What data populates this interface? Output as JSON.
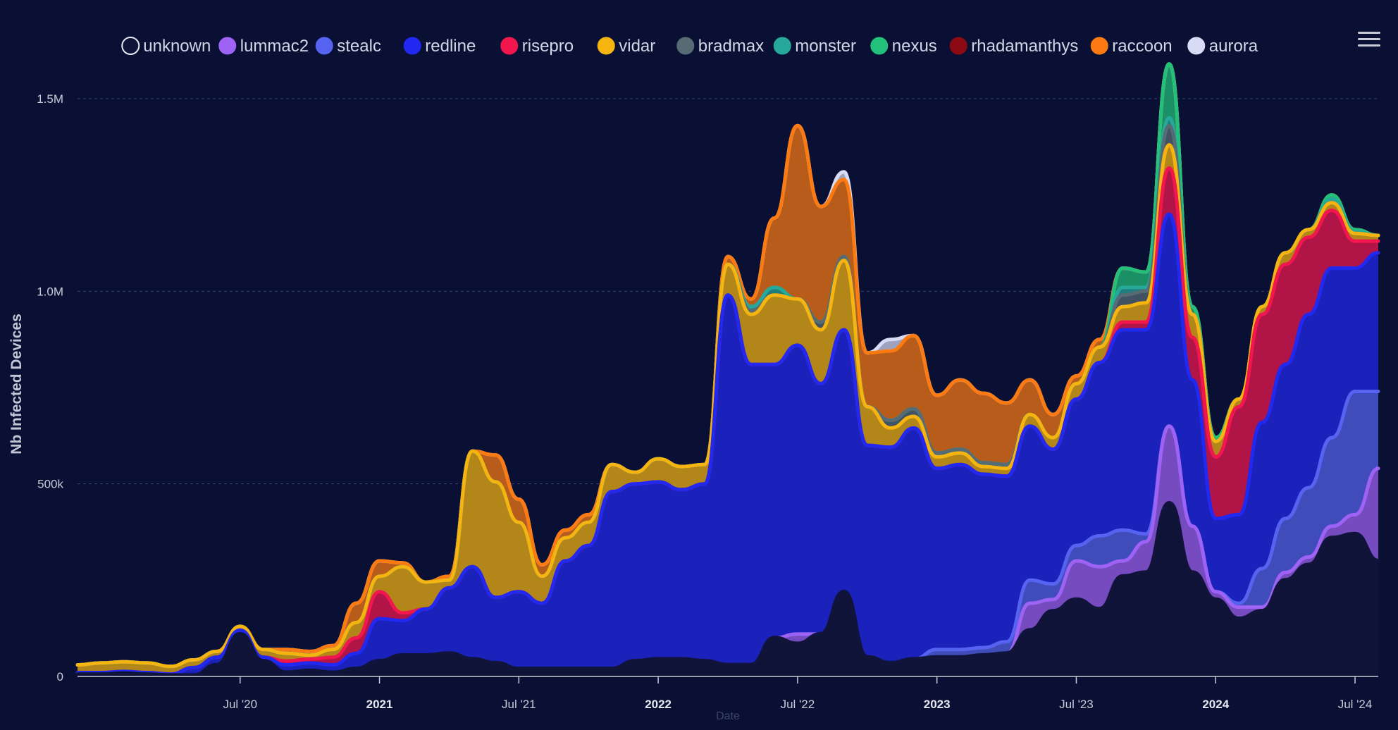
{
  "chart_data": {
    "type": "area",
    "stacked": true,
    "ylabel": "Nb Infected Devices",
    "xlabel": "Date",
    "ylim": [
      0,
      1500000
    ],
    "y_ticks": [
      0,
      500000,
      1000000,
      1500000
    ],
    "y_tick_labels": [
      "0",
      "500k",
      "1.0M",
      "1.5M"
    ],
    "x_range": [
      "2019-12",
      "2024-08"
    ],
    "x_ticks": [
      {
        "date": "2020-07",
        "label": "Jul '20",
        "major": false
      },
      {
        "date": "2021-01",
        "label": "2021",
        "major": true
      },
      {
        "date": "2021-07",
        "label": "Jul '21",
        "major": false
      },
      {
        "date": "2022-01",
        "label": "2022",
        "major": true
      },
      {
        "date": "2022-07",
        "label": "Jul '22",
        "major": false
      },
      {
        "date": "2023-01",
        "label": "2023",
        "major": true
      },
      {
        "date": "2023-07",
        "label": "Jul '23",
        "major": false
      },
      {
        "date": "2024-01",
        "label": "2024",
        "major": true
      },
      {
        "date": "2024-07",
        "label": "Jul '24",
        "major": false
      }
    ],
    "grid": "horizontal-dashed",
    "legend_position": "top",
    "x": [
      "2019-12",
      "2020-01",
      "2020-02",
      "2020-03",
      "2020-04",
      "2020-05",
      "2020-06",
      "2020-07",
      "2020-08",
      "2020-09",
      "2020-10",
      "2020-11",
      "2020-12",
      "2021-01",
      "2021-02",
      "2021-03",
      "2021-04",
      "2021-05",
      "2021-06",
      "2021-07",
      "2021-08",
      "2021-09",
      "2021-10",
      "2021-11",
      "2021-12",
      "2022-01",
      "2022-02",
      "2022-03",
      "2022-04",
      "2022-05",
      "2022-06",
      "2022-07",
      "2022-08",
      "2022-09",
      "2022-10",
      "2022-11",
      "2022-12",
      "2023-01",
      "2023-02",
      "2023-03",
      "2023-04",
      "2023-05",
      "2023-06",
      "2023-07",
      "2023-08",
      "2023-09",
      "2023-10",
      "2023-11",
      "2023-12",
      "2024-01",
      "2024-02",
      "2024-03",
      "2024-04",
      "2024-05",
      "2024-06",
      "2024-07",
      "2024-08"
    ],
    "series": [
      {
        "name": "unknown",
        "color": "#11143a",
        "values": [
          5000,
          5000,
          8000,
          5000,
          3000,
          3000,
          30000,
          110000,
          40000,
          10000,
          15000,
          10000,
          20000,
          40000,
          55000,
          55000,
          60000,
          45000,
          35000,
          20000,
          20000,
          20000,
          20000,
          20000,
          40000,
          45000,
          45000,
          40000,
          30000,
          30000,
          100000,
          85000,
          110000,
          220000,
          50000,
          35000,
          45000,
          50000,
          50000,
          55000,
          60000,
          120000,
          170000,
          200000,
          175000,
          260000,
          270000,
          450000,
          270000,
          200000,
          150000,
          170000,
          250000,
          290000,
          360000,
          370000,
          300000
        ]
      },
      {
        "name": "lummac2",
        "color": "#9e62f5",
        "values": [
          0,
          0,
          0,
          0,
          0,
          0,
          0,
          0,
          0,
          0,
          0,
          0,
          0,
          0,
          0,
          0,
          0,
          0,
          0,
          0,
          0,
          0,
          0,
          0,
          0,
          0,
          0,
          0,
          0,
          0,
          0,
          25000,
          0,
          0,
          0,
          0,
          0,
          0,
          0,
          0,
          0,
          70000,
          30000,
          100000,
          110000,
          40000,
          80000,
          200000,
          120000,
          20000,
          30000,
          10000,
          20000,
          20000,
          30000,
          50000,
          240000
        ]
      },
      {
        "name": "stealc",
        "color": "#5663f0",
        "values": [
          0,
          0,
          0,
          0,
          0,
          0,
          0,
          0,
          0,
          0,
          0,
          0,
          0,
          0,
          0,
          0,
          0,
          0,
          0,
          0,
          0,
          0,
          0,
          0,
          0,
          0,
          0,
          0,
          0,
          0,
          0,
          0,
          0,
          0,
          0,
          0,
          0,
          20000,
          20000,
          20000,
          30000,
          60000,
          40000,
          40000,
          80000,
          80000,
          20000,
          0,
          0,
          0,
          10000,
          100000,
          140000,
          180000,
          230000,
          320000,
          200000
        ]
      },
      {
        "name": "redline",
        "color": "#2128f0",
        "values": [
          5000,
          5000,
          5000,
          5000,
          3000,
          20000,
          20000,
          10000,
          10000,
          20000,
          20000,
          20000,
          40000,
          110000,
          90000,
          120000,
          170000,
          240000,
          170000,
          200000,
          170000,
          280000,
          320000,
          460000,
          460000,
          460000,
          440000,
          460000,
          960000,
          780000,
          710000,
          750000,
          650000,
          680000,
          550000,
          560000,
          600000,
          470000,
          480000,
          450000,
          430000,
          400000,
          350000,
          380000,
          450000,
          520000,
          530000,
          550000,
          380000,
          190000,
          230000,
          380000,
          400000,
          450000,
          440000,
          320000,
          360000
        ]
      },
      {
        "name": "risepro",
        "color": "#f2164f",
        "values": [
          0,
          0,
          0,
          0,
          0,
          0,
          0,
          0,
          0,
          10000,
          10000,
          20000,
          40000,
          70000,
          20000,
          0,
          0,
          0,
          0,
          0,
          0,
          0,
          0,
          0,
          0,
          0,
          0,
          0,
          0,
          0,
          0,
          0,
          0,
          0,
          0,
          0,
          0,
          0,
          0,
          0,
          0,
          0,
          0,
          0,
          0,
          20000,
          20000,
          120000,
          110000,
          160000,
          280000,
          280000,
          260000,
          200000,
          150000,
          70000,
          30000
        ]
      },
      {
        "name": "vidar",
        "color": "#f5b40f",
        "values": [
          20000,
          25000,
          25000,
          25000,
          20000,
          20000,
          15000,
          10000,
          20000,
          20000,
          10000,
          20000,
          40000,
          40000,
          120000,
          70000,
          20000,
          300000,
          300000,
          180000,
          70000,
          60000,
          60000,
          70000,
          30000,
          60000,
          60000,
          50000,
          80000,
          130000,
          180000,
          120000,
          140000,
          180000,
          100000,
          50000,
          30000,
          30000,
          30000,
          20000,
          20000,
          30000,
          30000,
          40000,
          40000,
          40000,
          50000,
          60000,
          60000,
          40000,
          20000,
          20000,
          30000,
          20000,
          20000,
          20000,
          15000
        ]
      },
      {
        "name": "bradmax",
        "color": "#566b74",
        "values": [
          0,
          0,
          0,
          0,
          0,
          0,
          0,
          0,
          0,
          0,
          0,
          0,
          0,
          0,
          0,
          0,
          0,
          0,
          0,
          0,
          0,
          0,
          0,
          0,
          0,
          0,
          0,
          0,
          0,
          10000,
          0,
          0,
          20000,
          10000,
          0,
          20000,
          20000,
          10000,
          10000,
          10000,
          10000,
          0,
          0,
          0,
          0,
          30000,
          30000,
          50000,
          0,
          0,
          0,
          0,
          0,
          0,
          0,
          0,
          0
        ]
      },
      {
        "name": "monster",
        "color": "#26a99a",
        "values": [
          0,
          0,
          0,
          0,
          0,
          0,
          0,
          0,
          0,
          0,
          0,
          0,
          0,
          0,
          0,
          0,
          0,
          0,
          0,
          0,
          0,
          0,
          0,
          0,
          0,
          0,
          0,
          0,
          0,
          10000,
          20000,
          0,
          0,
          0,
          0,
          0,
          0,
          0,
          0,
          0,
          0,
          0,
          0,
          0,
          0,
          20000,
          10000,
          20000,
          0,
          0,
          0,
          0,
          0,
          0,
          10000,
          5000,
          0
        ]
      },
      {
        "name": "nexus",
        "color": "#22c07a",
        "values": [
          0,
          0,
          0,
          0,
          0,
          0,
          0,
          0,
          0,
          0,
          0,
          0,
          0,
          0,
          0,
          0,
          0,
          0,
          0,
          0,
          0,
          0,
          0,
          0,
          0,
          0,
          0,
          0,
          0,
          0,
          0,
          0,
          0,
          0,
          0,
          0,
          0,
          0,
          0,
          0,
          0,
          0,
          0,
          0,
          0,
          50000,
          40000,
          140000,
          20000,
          10000,
          0,
          0,
          0,
          0,
          10000,
          5000,
          0
        ]
      },
      {
        "name": "rhadamanthys",
        "color": "#8c0a14",
        "values": [
          0,
          0,
          0,
          0,
          0,
          0,
          0,
          0,
          0,
          0,
          0,
          0,
          0,
          0,
          0,
          0,
          0,
          0,
          0,
          0,
          0,
          0,
          0,
          0,
          0,
          0,
          0,
          0,
          0,
          0,
          0,
          0,
          0,
          0,
          0,
          0,
          0,
          0,
          0,
          0,
          0,
          0,
          0,
          0,
          0,
          0,
          0,
          0,
          0,
          0,
          0,
          0,
          0,
          0,
          0,
          0,
          0
        ]
      },
      {
        "name": "raccoon",
        "color": "#fb7a12",
        "values": [
          0,
          0,
          0,
          0,
          0,
          0,
          0,
          0,
          0,
          10000,
          10000,
          10000,
          50000,
          40000,
          10000,
          0,
          10000,
          0,
          70000,
          60000,
          30000,
          20000,
          20000,
          0,
          0,
          0,
          0,
          0,
          20000,
          20000,
          180000,
          450000,
          300000,
          200000,
          140000,
          180000,
          190000,
          150000,
          180000,
          180000,
          160000,
          90000,
          60000,
          20000,
          20000,
          0,
          0,
          0,
          0,
          0,
          0,
          0,
          0,
          0,
          0,
          0,
          0
        ]
      },
      {
        "name": "aurora",
        "color": "#d8dbf5",
        "values": [
          0,
          0,
          0,
          0,
          0,
          0,
          0,
          0,
          0,
          0,
          0,
          0,
          0,
          0,
          0,
          0,
          0,
          0,
          0,
          0,
          0,
          0,
          0,
          0,
          0,
          0,
          0,
          0,
          0,
          0,
          0,
          0,
          0,
          20000,
          0,
          30000,
          0,
          0,
          0,
          0,
          0,
          0,
          0,
          0,
          0,
          0,
          0,
          0,
          0,
          0,
          0,
          0,
          0,
          0,
          0,
          0,
          0
        ]
      }
    ]
  },
  "ui": {
    "menu_icon": "hamburger-menu-icon"
  }
}
